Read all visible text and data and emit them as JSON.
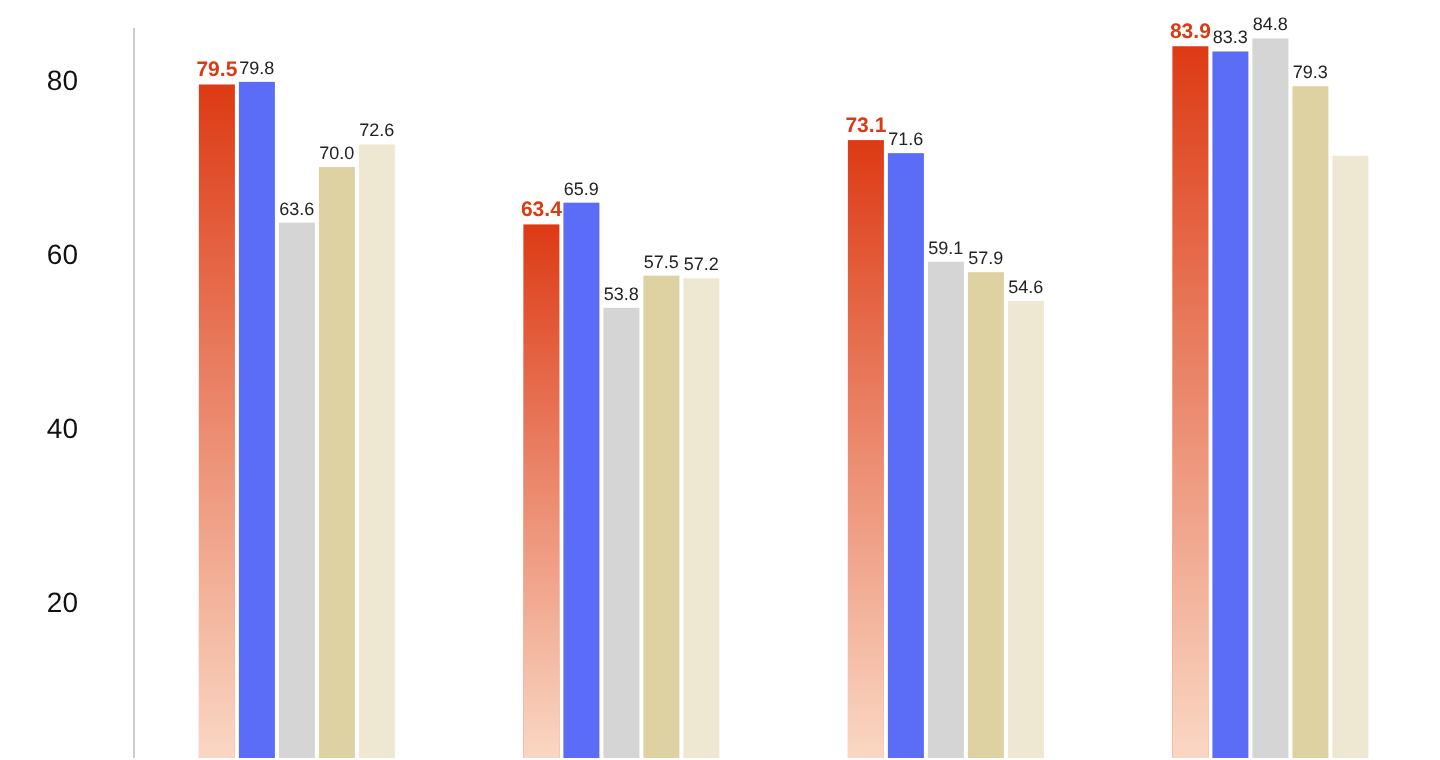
{
  "chart_data": {
    "type": "bar",
    "categories": [
      null,
      null,
      null,
      null
    ],
    "series": [
      {
        "color": "#dd3a14",
        "values": [
          79.5,
          63.4,
          73.1,
          83.9
        ],
        "value_labels": [
          "79.5",
          "63.4",
          "73.1",
          "83.9"
        ]
      },
      {
        "color": "#5b6cf6",
        "values": [
          79.8,
          65.9,
          71.6,
          83.3
        ],
        "value_labels": [
          "79.8",
          "65.9",
          "71.6",
          "83.3"
        ]
      },
      {
        "color": "#d5d5d5",
        "values": [
          63.6,
          53.8,
          59.1,
          84.8
        ],
        "value_labels": [
          "63.6",
          "53.8",
          "59.1",
          "84.8"
        ]
      },
      {
        "color": "#ded2a2",
        "values": [
          70.0,
          57.5,
          57.9,
          79.3
        ],
        "value_labels": [
          "70.0",
          "57.5",
          "57.9",
          "79.3"
        ]
      },
      {
        "color": "#eee8d3",
        "values": [
          72.6,
          57.2,
          54.6,
          71.3
        ],
        "value_labels": [
          "72.6",
          "57.2",
          "54.6",
          null
        ]
      }
    ],
    "ylim": [
      2,
      86
    ],
    "yticks": [
      20,
      40,
      60,
      80
    ],
    "grid": false,
    "legend": false
  }
}
